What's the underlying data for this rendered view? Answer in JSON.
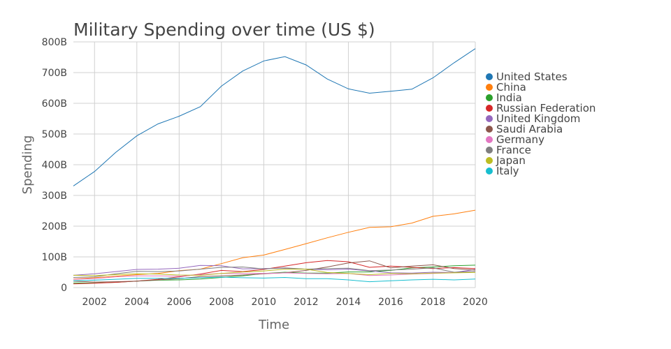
{
  "chart_data": {
    "type": "line",
    "title": "Military Spending over time (US $)",
    "xlabel": "Time",
    "ylabel": "Spending",
    "xlim": [
      2001,
      2020
    ],
    "ylim": [
      0,
      800
    ],
    "grid": true,
    "legend_position": "right",
    "x": [
      2001,
      2002,
      2003,
      2004,
      2005,
      2006,
      2007,
      2008,
      2009,
      2010,
      2011,
      2012,
      2013,
      2014,
      2015,
      2016,
      2017,
      2018,
      2019,
      2020
    ],
    "x_ticks": [
      2002,
      2004,
      2006,
      2008,
      2010,
      2012,
      2014,
      2016,
      2018,
      2020
    ],
    "x_tick_labels": [
      "2002",
      "2004",
      "2006",
      "2008",
      "2010",
      "2012",
      "2014",
      "2016",
      "2018",
      "2020"
    ],
    "y_ticks": [
      0,
      100,
      200,
      300,
      400,
      500,
      600,
      700,
      800
    ],
    "y_tick_labels": [
      "0",
      "100B",
      "200B",
      "300B",
      "400B",
      "500B",
      "600B",
      "700B",
      "800B"
    ],
    "value_unit": "billion US $",
    "series": [
      {
        "name": "United States",
        "color": "#1f77b4",
        "values": [
          331,
          378,
          440,
          494,
          533,
          558,
          589,
          656,
          705,
          738,
          752,
          725,
          679,
          647,
          633,
          639,
          646,
          683,
          732,
          778
        ]
      },
      {
        "name": "China",
        "color": "#ff7f0e",
        "values": [
          28,
          32,
          37,
          42,
          46,
          55,
          60,
          78,
          97,
          106,
          124,
          143,
          162,
          180,
          196,
          198,
          210,
          232,
          240,
          252
        ]
      },
      {
        "name": "India",
        "color": "#2ca02c",
        "values": [
          15,
          15,
          17,
          21,
          24,
          25,
          28,
          33,
          38,
          46,
          50,
          47,
          47,
          51,
          51,
          56,
          64,
          67,
          71,
          73
        ]
      },
      {
        "name": "Russian Federation",
        "color": "#d62728",
        "values": [
          12,
          14,
          17,
          21,
          27,
          35,
          44,
          56,
          52,
          59,
          70,
          81,
          88,
          84,
          66,
          70,
          66,
          62,
          65,
          62
        ]
      },
      {
        "name": "United Kingdom",
        "color": "#9467bd",
        "values": [
          40,
          45,
          52,
          59,
          60,
          63,
          72,
          71,
          61,
          62,
          63,
          60,
          58,
          60,
          54,
          48,
          47,
          50,
          49,
          59
        ]
      },
      {
        "name": "Saudi Arabia",
        "color": "#8c564b",
        "values": [
          21,
          18,
          19,
          21,
          25,
          29,
          36,
          38,
          41,
          45,
          48,
          56,
          67,
          80,
          87,
          64,
          70,
          74,
          62,
          57
        ]
      },
      {
        "name": "Germany",
        "color": "#e377c2",
        "values": [
          27,
          29,
          35,
          38,
          38,
          37,
          42,
          46,
          46,
          46,
          48,
          46,
          45,
          46,
          39,
          41,
          44,
          46,
          49,
          53
        ]
      },
      {
        "name": "France",
        "color": "#7f7f7f",
        "values": [
          33,
          35,
          45,
          53,
          52,
          54,
          60,
          66,
          67,
          61,
          64,
          60,
          62,
          63,
          55,
          57,
          60,
          64,
          50,
          53
        ]
      },
      {
        "name": "Japan",
        "color": "#bcbd22",
        "values": [
          40,
          39,
          42,
          45,
          44,
          41,
          40,
          46,
          51,
          54,
          60,
          60,
          49,
          46,
          42,
          46,
          45,
          47,
          48,
          49
        ]
      },
      {
        "name": "Italy",
        "color": "#17becf",
        "values": [
          22,
          24,
          27,
          30,
          30,
          30,
          32,
          34,
          32,
          31,
          33,
          29,
          29,
          25,
          19,
          22,
          25,
          27,
          25,
          28
        ]
      }
    ]
  }
}
